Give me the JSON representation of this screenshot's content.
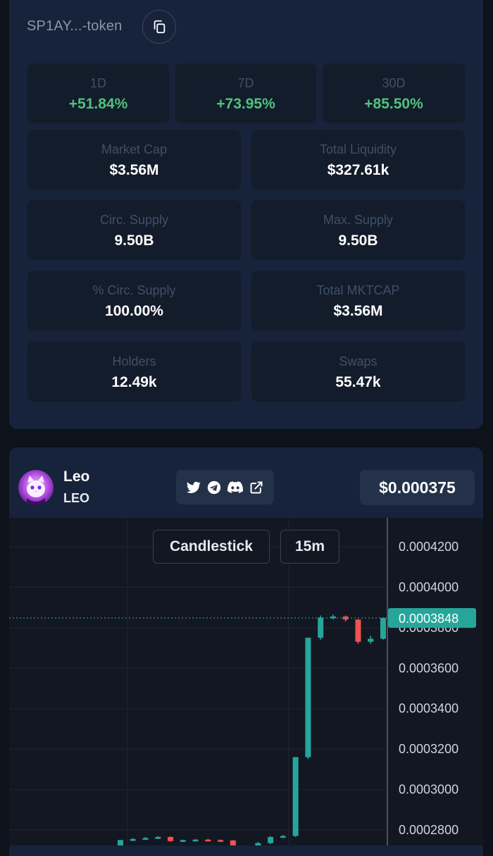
{
  "contract": {
    "address": "SP1AY...-token"
  },
  "stats": {
    "changes": [
      {
        "label": "1D",
        "value": "+51.84%"
      },
      {
        "label": "7D",
        "value": "+73.95%"
      },
      {
        "label": "30D",
        "value": "+85.50%"
      }
    ],
    "grid": [
      {
        "label": "Market Cap",
        "value": "$3.56M"
      },
      {
        "label": "Total Liquidity",
        "value": "$327.61k"
      },
      {
        "label": "Circ. Supply",
        "value": "9.50B"
      },
      {
        "label": "Max. Supply",
        "value": "9.50B"
      },
      {
        "label": "% Circ. Supply",
        "value": "100.00%"
      },
      {
        "label": "Total MKTCAP",
        "value": "$3.56M"
      },
      {
        "label": "Holders",
        "value": "12.49k"
      },
      {
        "label": "Swaps",
        "value": "55.47k"
      }
    ]
  },
  "token": {
    "name": "Leo",
    "symbol": "LEO",
    "price": "$0.000375",
    "socials": [
      "twitter-icon",
      "telegram-icon",
      "discord-icon",
      "external-link-icon"
    ]
  },
  "chart_controls": {
    "type_label": "Candlestick",
    "interval_label": "15m"
  },
  "colors": {
    "up": "#26a69a",
    "down": "#ef5350",
    "positive_text": "#4fc37c",
    "current_price_tag": "#26a69a"
  },
  "chart_data": {
    "type": "candlestick",
    "y_ticks": [
      "0.0004200",
      "0.0004000",
      "0.0003800",
      "0.0003600",
      "0.0003400",
      "0.0003200",
      "0.0003000",
      "0.0002800"
    ],
    "current_price_label": "0.0003848",
    "current_price": 0.0003848,
    "candles": [
      {
        "o": 0.0002715,
        "h": 0.000275,
        "l": 0.000265,
        "c": 0.000275
      },
      {
        "o": 0.000275,
        "h": 0.000276,
        "l": 0.0002745,
        "c": 0.0002755
      },
      {
        "o": 0.0002755,
        "h": 0.0002765,
        "l": 0.000275,
        "c": 0.000276
      },
      {
        "o": 0.000276,
        "h": 0.000277,
        "l": 0.0002755,
        "c": 0.0002765
      },
      {
        "o": 0.0002765,
        "h": 0.0002768,
        "l": 0.000274,
        "c": 0.0002745
      },
      {
        "o": 0.0002745,
        "h": 0.0002752,
        "l": 0.000274,
        "c": 0.000275
      },
      {
        "o": 0.000275,
        "h": 0.0002755,
        "l": 0.0002745,
        "c": 0.0002752
      },
      {
        "o": 0.0002752,
        "h": 0.0002756,
        "l": 0.0002745,
        "c": 0.000275
      },
      {
        "o": 0.000275,
        "h": 0.0002753,
        "l": 0.0002745,
        "c": 0.0002748
      },
      {
        "o": 0.0002748,
        "h": 0.000275,
        "l": 0.000264,
        "c": 0.000269
      },
      {
        "o": 0.000269,
        "h": 0.00027,
        "l": 0.000264,
        "c": 0.000269
      },
      {
        "o": 0.000269,
        "h": 0.000274,
        "l": 0.000266,
        "c": 0.0002735
      },
      {
        "o": 0.0002735,
        "h": 0.000277,
        "l": 0.000273,
        "c": 0.0002765
      },
      {
        "o": 0.0002765,
        "h": 0.0002775,
        "l": 0.000276,
        "c": 0.000277
      },
      {
        "o": 0.000277,
        "h": 0.000316,
        "l": 0.0002765,
        "c": 0.000316
      },
      {
        "o": 0.000316,
        "h": 0.000375,
        "l": 0.000315,
        "c": 0.000375
      },
      {
        "o": 0.000375,
        "h": 0.000386,
        "l": 0.000374,
        "c": 0.000385
      },
      {
        "o": 0.000385,
        "h": 0.0003865,
        "l": 0.000384,
        "c": 0.0003855
      },
      {
        "o": 0.0003855,
        "h": 0.000386,
        "l": 0.000383,
        "c": 0.000384
      },
      {
        "o": 0.000384,
        "h": 0.0003842,
        "l": 0.000372,
        "c": 0.000373
      },
      {
        "o": 0.000373,
        "h": 0.000376,
        "l": 0.000372,
        "c": 0.0003745
      },
      {
        "o": 0.0003745,
        "h": 0.000385,
        "l": 0.000374,
        "c": 0.0003848
      }
    ]
  }
}
